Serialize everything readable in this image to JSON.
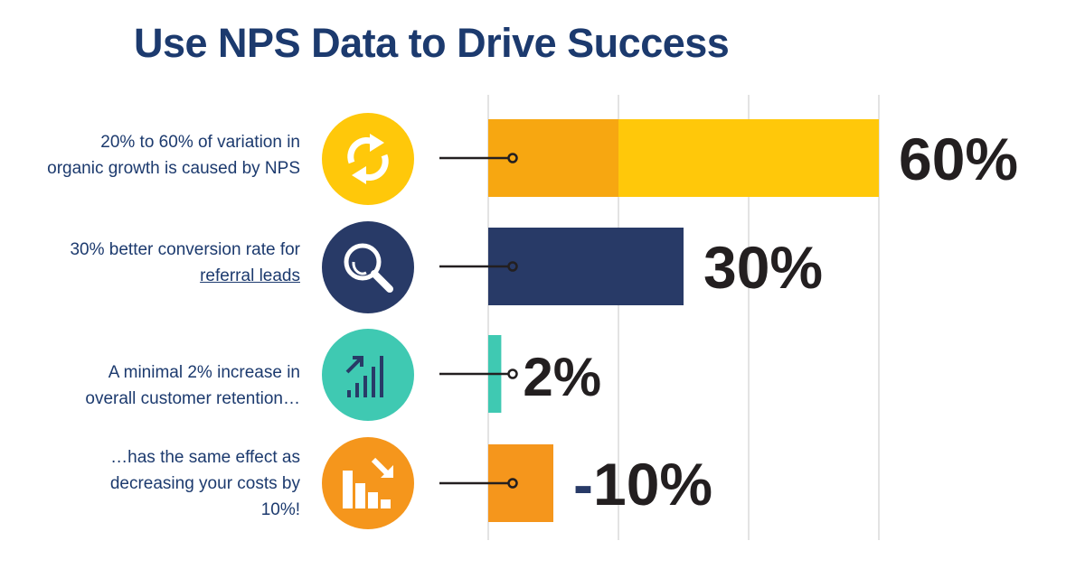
{
  "title": "Use NPS Data to Drive Success",
  "rows": [
    {
      "text": "20% to 60% of variation in organic growth is caused by NPS",
      "line1": "20% to 60% of variation in",
      "line2": "organic growth is caused by NPS",
      "icon": "refresh-icon",
      "icon_color": "#FFC80A"
    },
    {
      "text": "30% better conversion rate for referral leads",
      "line1": "30% better conversion rate for",
      "link": "referral leads",
      "icon": "magnifier-icon",
      "icon_color": "#283A67"
    },
    {
      "text": "A minimal 2% increase in overall customer retention…",
      "line1": "A minimal 2% increase in",
      "line2": "overall customer retention…",
      "icon": "growth-bars-icon",
      "icon_color": "#3FC9B2"
    },
    {
      "text": "…has the same effect as decreasing your costs by 10%!",
      "line1": "…has the same effect as",
      "line2": "decreasing your costs by",
      "line3": "10%!",
      "icon": "declining-bars-icon",
      "icon_color": "#F5961C"
    }
  ],
  "chart_data": {
    "type": "bar",
    "orientation": "horizontal",
    "categories": [
      "Organic growth variation caused by NPS",
      "Conversion rate for referral leads",
      "Customer retention increase",
      "Cost decrease"
    ],
    "values": [
      60,
      30,
      2,
      -10
    ],
    "range_segment": {
      "from": 0,
      "to": 20,
      "color": "#F7A711"
    },
    "data_labels": [
      "60%",
      "30%",
      "2%",
      "-10%"
    ],
    "colors": [
      "#FFC80A",
      "#283A67",
      "#3FC9B2",
      "#F5961C"
    ],
    "xlim": [
      0,
      60
    ],
    "gridlines": [
      0,
      20,
      40,
      60
    ],
    "grid": true
  }
}
